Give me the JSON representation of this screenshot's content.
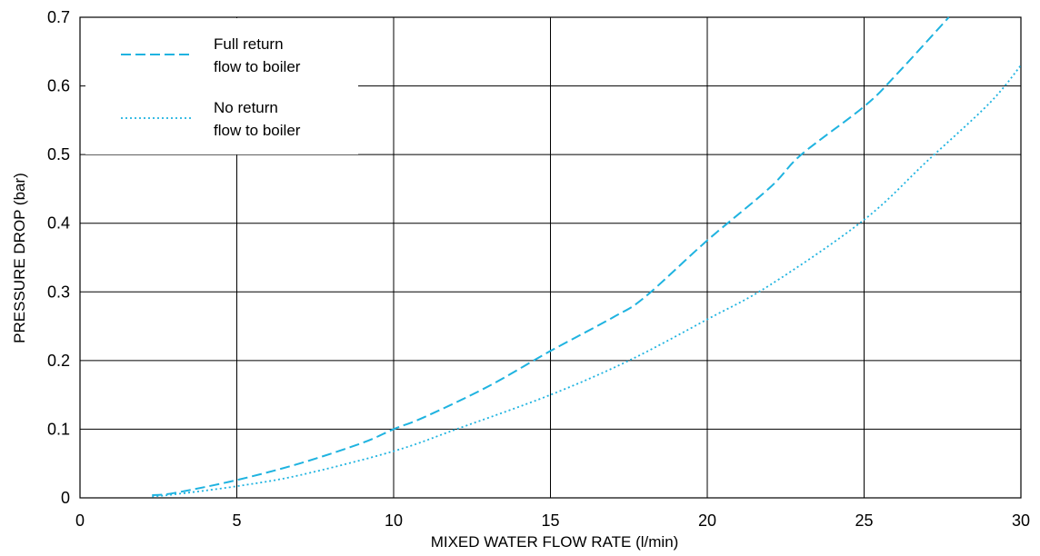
{
  "chart_data": {
    "type": "line",
    "xlabel": "MIXED WATER FLOW RATE (l/min)",
    "ylabel": "PRESSURE DROP (bar)",
    "xlim": [
      0,
      30
    ],
    "ylim": [
      0,
      0.7
    ],
    "x_ticks": [
      "0",
      "5",
      "10",
      "15",
      "20",
      "25",
      "30"
    ],
    "y_ticks": [
      "0",
      "0.1",
      "0.2",
      "0.3",
      "0.4",
      "0.5",
      "0.6",
      "0.7"
    ],
    "grid": true,
    "legend_position": "top-left",
    "series": [
      {
        "name": "Full return\nflow to boiler",
        "legend_lines": [
          "Full return",
          "flow to boiler"
        ],
        "style": "dashed",
        "color": "#1fb3e0",
        "x": [
          2.3,
          3,
          5,
          7,
          9,
          10,
          11,
          13,
          15,
          17,
          18,
          20,
          22,
          23,
          25,
          26,
          27.7
        ],
        "y": [
          0.004,
          0.007,
          0.026,
          0.05,
          0.08,
          0.1,
          0.118,
          0.162,
          0.214,
          0.263,
          0.292,
          0.375,
          0.452,
          0.5,
          0.57,
          0.615,
          0.7
        ]
      },
      {
        "name": "No return\nflow to boiler",
        "legend_lines": [
          "No return",
          "flow to boiler"
        ],
        "style": "dotted",
        "color": "#1fb3e0",
        "x": [
          2.3,
          3,
          5,
          7,
          10,
          12,
          15,
          17.5,
          20,
          22,
          25,
          27,
          29,
          30
        ],
        "y": [
          0.002,
          0.005,
          0.017,
          0.033,
          0.068,
          0.1,
          0.15,
          0.2,
          0.26,
          0.31,
          0.405,
          0.49,
          0.575,
          0.63
        ]
      }
    ]
  }
}
